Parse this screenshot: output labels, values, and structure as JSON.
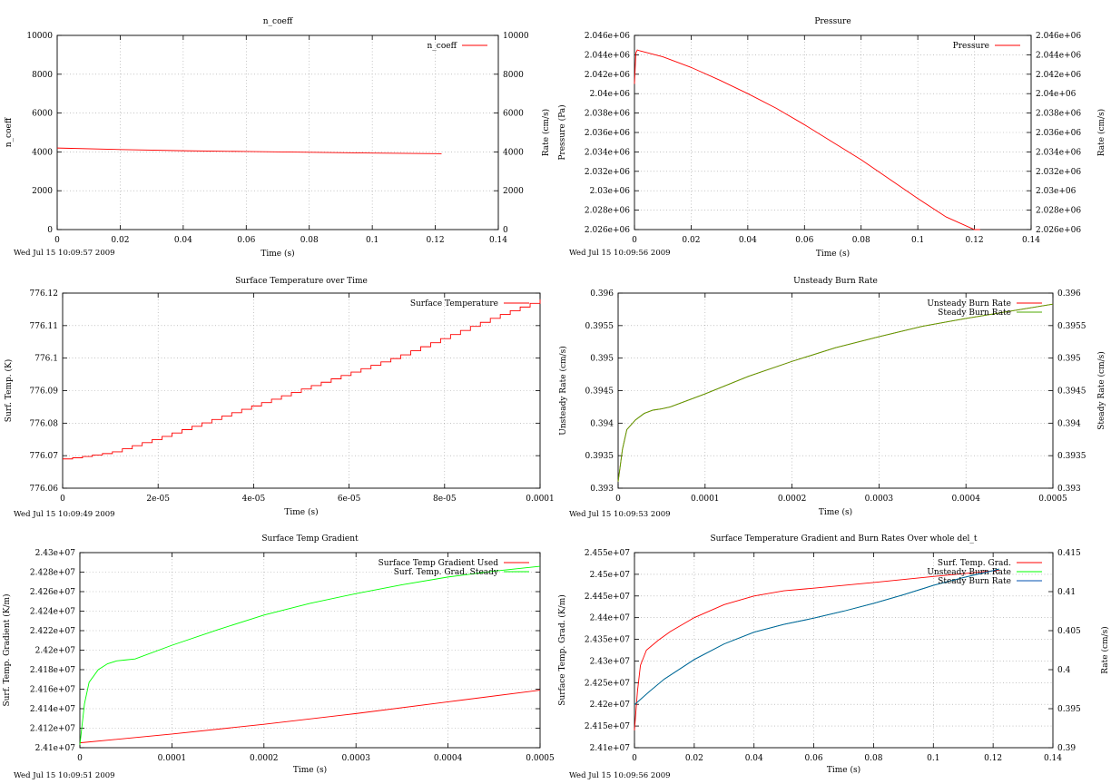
{
  "charts_meta": {
    "line_color_red": "#ff0000",
    "line_color_green": "#00ff00",
    "line_color_darkgreen": "#4daa00",
    "line_color_blue": "#0050b0",
    "grid": "dotted"
  },
  "chart_data": [
    {
      "id": "ncoeff",
      "type": "line",
      "title": "n_coeff",
      "xlabel": "Time (s)",
      "ylabel": "n_coeff",
      "y2label": "Rate (cm/s)",
      "xlim": [
        0,
        0.14
      ],
      "ylim": [
        0,
        10000
      ],
      "y2lim": [
        0,
        10000
      ],
      "xticks": [
        "0",
        "0.02",
        "0.04",
        "0.06",
        "0.08",
        "0.1",
        "0.12",
        "0.14"
      ],
      "yticks": [
        "0",
        "2000",
        "4000",
        "6000",
        "8000",
        "10000"
      ],
      "y2ticks": [
        "0",
        "2000",
        "4000",
        "6000",
        "8000",
        "10000"
      ],
      "legend_position": "top-right",
      "timestamp": "Wed Jul 15 10:09:57 2009",
      "series": [
        {
          "name": "n_coeff",
          "color": "#ff0000",
          "axis": "y",
          "x": [
            0,
            0.02,
            0.04,
            0.06,
            0.08,
            0.1,
            0.12,
            0.122
          ],
          "y": [
            4200,
            4120,
            4060,
            4020,
            3980,
            3940,
            3910,
            3905
          ]
        }
      ]
    },
    {
      "id": "pressure",
      "type": "line",
      "title": "Pressure",
      "xlabel": "Time (s)",
      "ylabel": "Pressure (Pa)",
      "y2label": "Rate (cm/s)",
      "xlim": [
        0,
        0.14
      ],
      "ylim": [
        2026000,
        2046000
      ],
      "y2lim": [
        2026000,
        2046000
      ],
      "xticks": [
        "0",
        "0.02",
        "0.04",
        "0.06",
        "0.08",
        "0.1",
        "0.12",
        "0.14"
      ],
      "yticks": [
        "2.026e+06",
        "2.028e+06",
        "2.03e+06",
        "2.032e+06",
        "2.034e+06",
        "2.036e+06",
        "2.038e+06",
        "2.04e+06",
        "2.042e+06",
        "2.044e+06",
        "2.046e+06"
      ],
      "y2ticks": [
        "2.026e+06",
        "2.028e+06",
        "2.03e+06",
        "2.032e+06",
        "2.034e+06",
        "2.036e+06",
        "2.038e+06",
        "2.04e+06",
        "2.042e+06",
        "2.044e+06",
        "2.046e+06"
      ],
      "legend_position": "top-right",
      "timestamp": "Wed Jul 15 10:09:56 2009",
      "series": [
        {
          "name": "Pressure",
          "color": "#ff0000",
          "axis": "y",
          "x": [
            0,
            0.0005,
            0.001,
            0.002,
            0.01,
            0.02,
            0.03,
            0.04,
            0.05,
            0.06,
            0.07,
            0.08,
            0.09,
            0.1,
            0.11,
            0.12,
            0.122
          ],
          "y": [
            2041000,
            2044200,
            2044500,
            2044400,
            2043800,
            2042700,
            2041400,
            2040000,
            2038500,
            2036800,
            2035000,
            2033200,
            2031200,
            2029200,
            2027300,
            2026000,
            2026000
          ]
        }
      ]
    },
    {
      "id": "surftemp",
      "type": "line",
      "title": "Surface Temperature over Time",
      "xlabel": "Time (s)",
      "ylabel": "Surf. Temp. (K)",
      "xlim": [
        0,
        0.0001
      ],
      "ylim": [
        776.06,
        776.12
      ],
      "xticks": [
        "0",
        "2e-05",
        "4e-05",
        "6e-05",
        "8e-05",
        "0.0001"
      ],
      "xtick_values": [
        0,
        2e-05,
        4e-05,
        6e-05,
        8e-05,
        0.0001
      ],
      "yticks": [
        "776.06",
        "776.07",
        "776.08",
        "776.09",
        "776.1",
        "776.11",
        "776.12"
      ],
      "legend_position": "top-right",
      "timestamp": "Wed Jul 15 10:09:49 2009",
      "series": [
        {
          "name": "Surface Temperature",
          "color": "#ff0000",
          "axis": "y",
          "step": true,
          "x": [
            0,
            3e-06,
            1e-05,
            2e-05,
            3e-05,
            4e-05,
            5e-05,
            6e-05,
            7e-05,
            8e-05,
            9e-05,
            0.0001
          ],
          "y": [
            776.069,
            776.0695,
            776.071,
            776.0755,
            776.0805,
            776.0855,
            776.0905,
            776.0955,
            776.1005,
            776.1065,
            776.1125,
            776.118
          ]
        }
      ]
    },
    {
      "id": "burnrate",
      "type": "line",
      "title": "Unsteady Burn Rate",
      "xlabel": "Time (s)",
      "ylabel": "Unsteady Rate (cm/s)",
      "y2label": "Steady Rate (cm/s)",
      "xlim": [
        0,
        0.0005
      ],
      "ylim": [
        0.393,
        0.396
      ],
      "y2lim": [
        0.393,
        0.396
      ],
      "xticks": [
        "0",
        "0.0001",
        "0.0002",
        "0.0003",
        "0.0004",
        "0.0005"
      ],
      "yticks": [
        "0.393",
        "0.3935",
        "0.394",
        "0.3945",
        "0.395",
        "0.3955",
        "0.396"
      ],
      "y2ticks": [
        "0.393",
        "0.3935",
        "0.394",
        "0.3945",
        "0.395",
        "0.3955",
        "0.396"
      ],
      "legend_position": "top-right",
      "timestamp": "Wed Jul 15 10:09:53 2009",
      "series": [
        {
          "name": "Unsteady Burn Rate",
          "color": "#ff0000",
          "axis": "y",
          "x": [
            0,
            5e-06,
            1e-05,
            2e-05,
            3e-05,
            4e-05,
            5e-05,
            6e-05,
            0.0001,
            0.00015,
            0.0002,
            0.00025,
            0.0003,
            0.00035,
            0.0004,
            0.00045,
            0.0005
          ],
          "y": [
            0.3931,
            0.3936,
            0.3939,
            0.39405,
            0.39415,
            0.3942,
            0.39422,
            0.39425,
            0.39445,
            0.39472,
            0.39495,
            0.39516,
            0.39533,
            0.39549,
            0.39561,
            0.39572,
            0.39583
          ]
        },
        {
          "name": "Steady Burn Rate",
          "color": "#4daa00",
          "axis": "y2",
          "x": [
            0,
            5e-06,
            1e-05,
            2e-05,
            3e-05,
            4e-05,
            5e-05,
            6e-05,
            0.0001,
            0.00015,
            0.0002,
            0.00025,
            0.0003,
            0.00035,
            0.0004,
            0.00045,
            0.0005
          ],
          "y": [
            0.3931,
            0.3936,
            0.3939,
            0.39405,
            0.39415,
            0.3942,
            0.39422,
            0.39425,
            0.39445,
            0.39472,
            0.39495,
            0.39516,
            0.39533,
            0.39549,
            0.39561,
            0.39572,
            0.39583
          ]
        }
      ]
    },
    {
      "id": "tempgrad",
      "type": "line",
      "title": "Surface Temp Gradient",
      "xlabel": "Time (s)",
      "ylabel": "Surf. Temp. Gradient (K/m)",
      "xlim": [
        0,
        0.0005
      ],
      "ylim": [
        24100000,
        24300000
      ],
      "xticks": [
        "0",
        "0.0001",
        "0.0002",
        "0.0003",
        "0.0004",
        "0.0005"
      ],
      "yticks": [
        "2.41e+07",
        "2.412e+07",
        "2.414e+07",
        "2.416e+07",
        "2.418e+07",
        "2.42e+07",
        "2.422e+07",
        "2.424e+07",
        "2.426e+07",
        "2.428e+07",
        "2.43e+07"
      ],
      "legend_position": "top-right",
      "timestamp": "Wed Jul 15 10:09:51 2009",
      "series": [
        {
          "name": "Surface Temp Gradient Used",
          "color": "#ff0000",
          "axis": "y",
          "x": [
            0,
            0.0001,
            0.0002,
            0.0003,
            0.0004,
            0.0005
          ],
          "y": [
            24105000,
            24114000,
            24124000,
            24135000,
            24147000,
            24159000
          ]
        },
        {
          "name": "Surf. Temp. Grad. Steady",
          "color": "#00ff00",
          "axis": "y",
          "x": [
            0,
            5e-06,
            1e-05,
            2e-05,
            3e-05,
            4e-05,
            5e-05,
            6e-05,
            0.0001,
            0.00015,
            0.0002,
            0.00025,
            0.0003,
            0.00035,
            0.0004,
            0.00045,
            0.0005
          ],
          "y": [
            24103000,
            24145000,
            24167000,
            24180000,
            24186000,
            24189000,
            24190000,
            24191000,
            24205000,
            24221000,
            24236000,
            24248000,
            24258000,
            24267000,
            24275000,
            24281000,
            24286000
          ]
        }
      ]
    },
    {
      "id": "wholedelt",
      "type": "line",
      "title": "Surface Temperature Gradient and Burn Rates Over whole del_t",
      "xlabel": "Time (s)",
      "ylabel": "Surface Temp. Grad. (K/m)",
      "y2label": "Rate (cm/s)",
      "xlim": [
        0,
        0.14
      ],
      "ylim": [
        24100000,
        24550000
      ],
      "y2lim": [
        0.39,
        0.415
      ],
      "xticks": [
        "0",
        "0.02",
        "0.04",
        "0.06",
        "0.08",
        "0.1",
        "0.12",
        "0.14"
      ],
      "yticks": [
        "2.41e+07",
        "2.415e+07",
        "2.42e+07",
        "2.425e+07",
        "2.43e+07",
        "2.435e+07",
        "2.44e+07",
        "2.445e+07",
        "2.45e+07",
        "2.455e+07"
      ],
      "y2ticks": [
        "0.39",
        "0.395",
        "0.4",
        "0.405",
        "0.41",
        "0.415"
      ],
      "legend_position": "top-right",
      "timestamp": "Wed Jul 15 10:09:56 2009",
      "series": [
        {
          "name": "Surf. Temp. Grad.",
          "color": "#ff0000",
          "axis": "y",
          "x": [
            0,
            0.001,
            0.002,
            0.004,
            0.008,
            0.012,
            0.02,
            0.03,
            0.04,
            0.05,
            0.06,
            0.08,
            0.1,
            0.12,
            0.122
          ],
          "y": [
            24140000,
            24230000,
            24290000,
            24325000,
            24348000,
            24368000,
            24400000,
            24430000,
            24450000,
            24462000,
            24468000,
            24481000,
            24495000,
            24508000,
            24509000
          ]
        },
        {
          "name": "Unsteady Burn Rate",
          "color": "#00ff00",
          "axis": "y2",
          "x": [
            0,
            0.005,
            0.01,
            0.02,
            0.03,
            0.04,
            0.05,
            0.06,
            0.07,
            0.08,
            0.09,
            0.1,
            0.11,
            0.12,
            0.122
          ],
          "y": [
            0.3955,
            0.3972,
            0.3988,
            0.4013,
            0.4033,
            0.4048,
            0.4058,
            0.4066,
            0.4075,
            0.4085,
            0.4096,
            0.4108,
            0.4118,
            0.4127,
            0.4129
          ]
        },
        {
          "name": "Steady Burn Rate",
          "color": "#0050b0",
          "axis": "y2",
          "x": [
            0,
            0.005,
            0.01,
            0.02,
            0.03,
            0.04,
            0.05,
            0.06,
            0.07,
            0.08,
            0.09,
            0.1,
            0.11,
            0.12,
            0.122
          ],
          "y": [
            0.3955,
            0.3972,
            0.3988,
            0.4013,
            0.4033,
            0.4048,
            0.4058,
            0.4066,
            0.4075,
            0.4085,
            0.4096,
            0.4108,
            0.4118,
            0.4127,
            0.4129
          ]
        }
      ]
    }
  ]
}
